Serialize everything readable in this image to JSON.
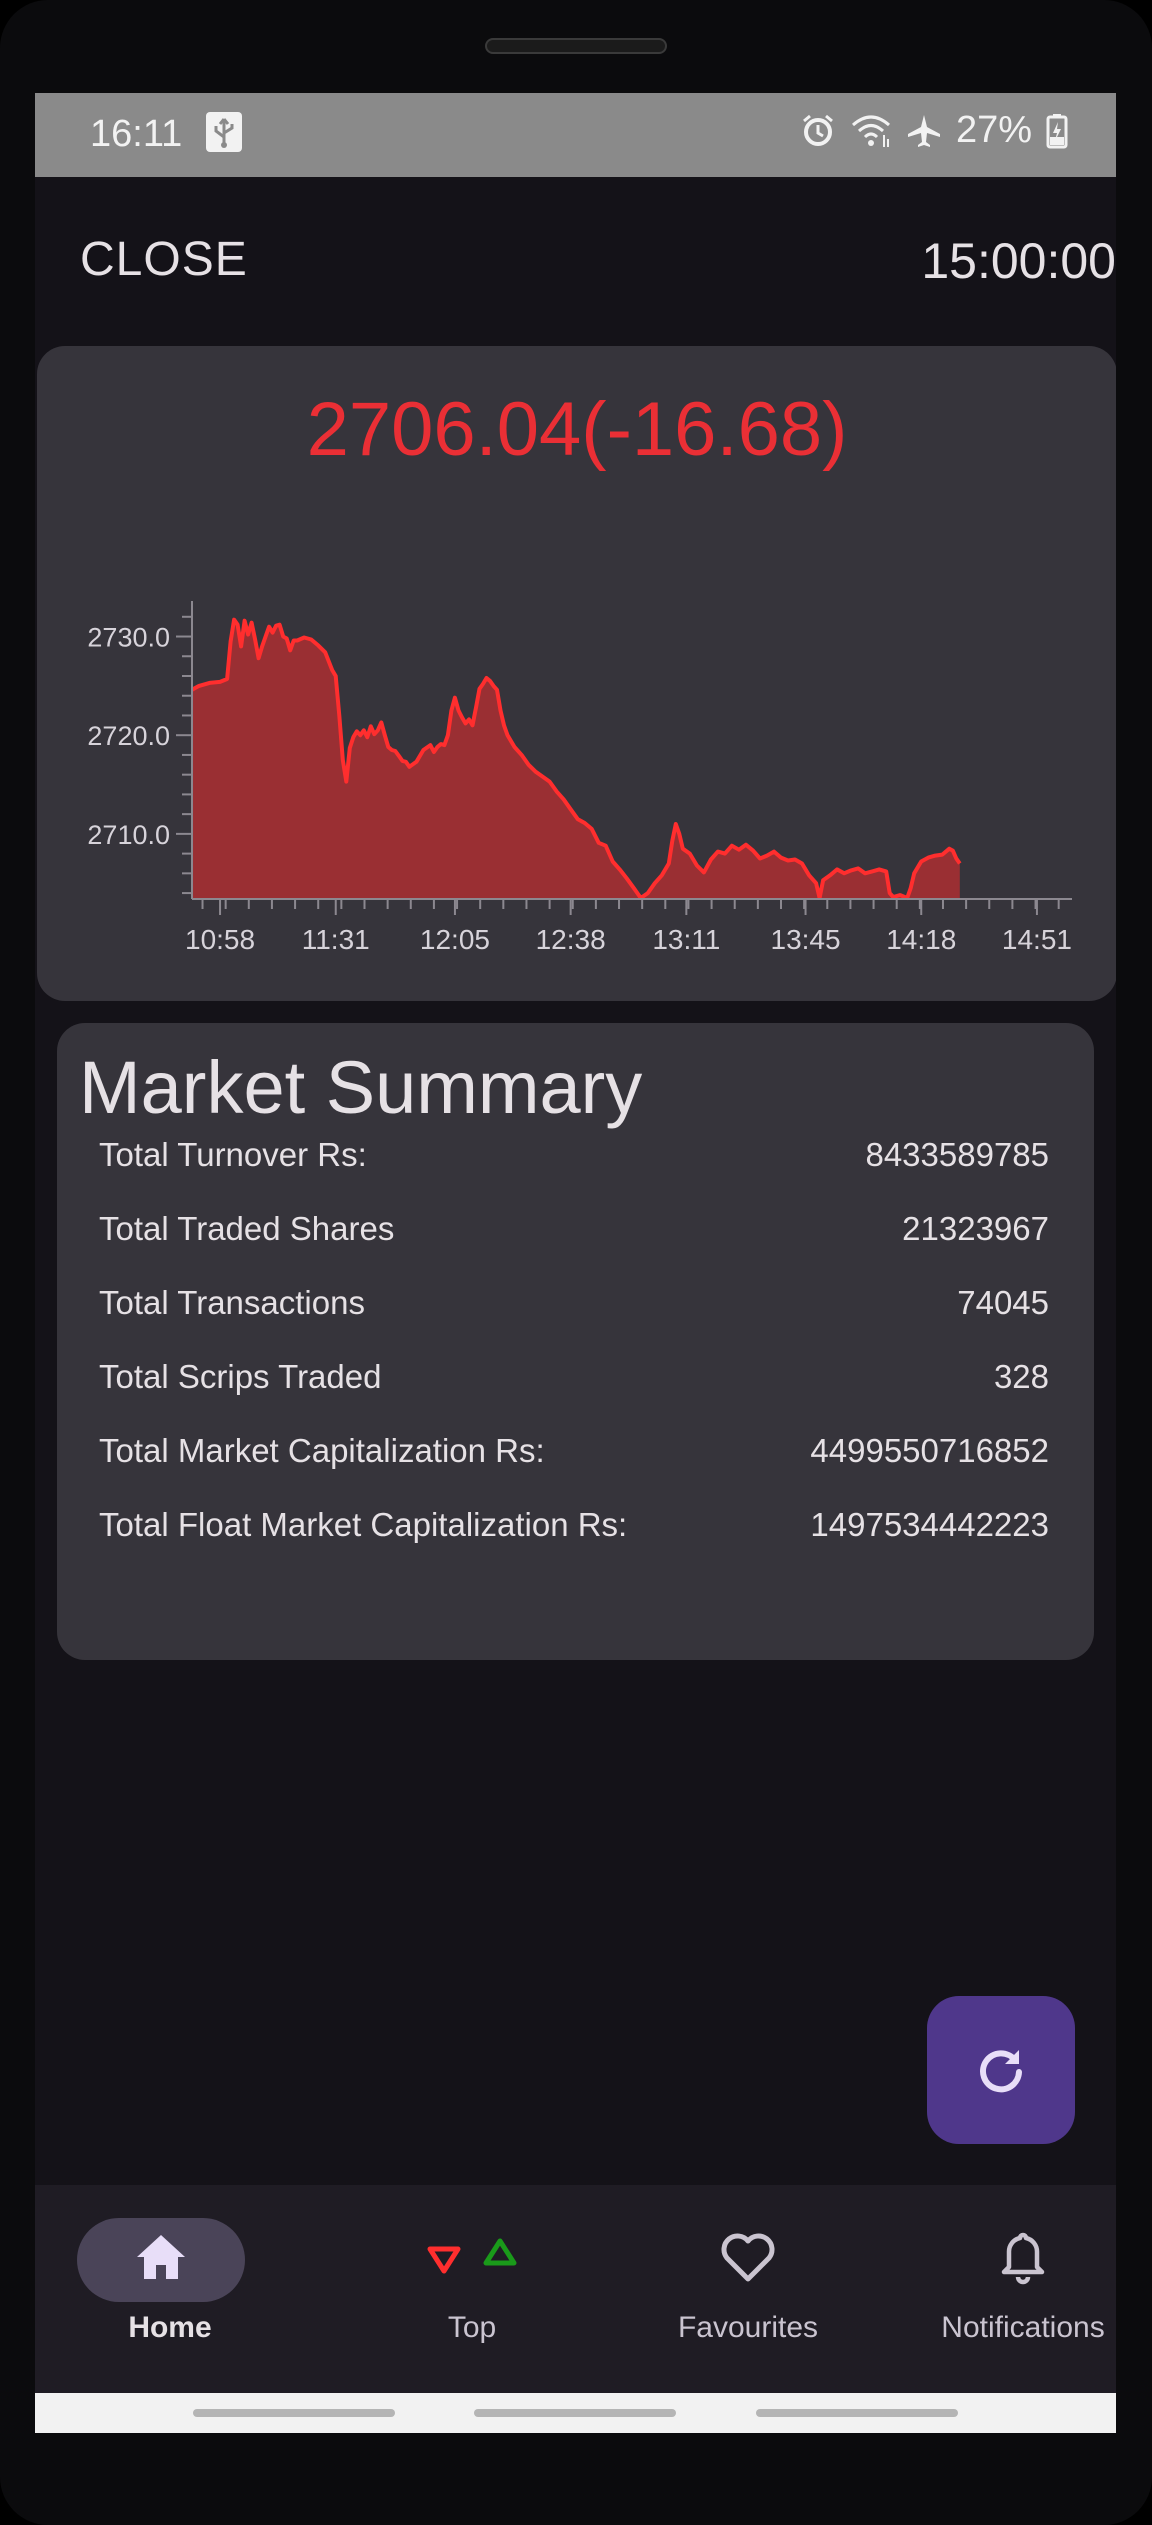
{
  "status_bar": {
    "time": "16:11",
    "battery": "27%",
    "icons": [
      "usb-icon",
      "alarm-icon",
      "wifi-icon",
      "airplane-icon",
      "battery-icon"
    ]
  },
  "header": {
    "market_status": "CLOSE",
    "clock": "15:00:00"
  },
  "index": {
    "value_text": "2706.04(-16.68)",
    "color": "#ea2f35"
  },
  "chart_data": {
    "type": "area",
    "series_color": "#ff2e2e",
    "fill_color": "#9a2f33",
    "y_ticks": [
      "2730.0",
      "2720.0",
      "2710.0"
    ],
    "ylim": [
      2703.4,
      2733.6
    ],
    "x_ticks": [
      "10:58",
      "11:31",
      "12:05",
      "12:38",
      "13:11",
      "13:45",
      "14:18",
      "14:51"
    ],
    "x_range_minutes": [
      650,
      901
    ],
    "points": [
      [
        650,
        2724.6
      ],
      [
        652,
        2725.0
      ],
      [
        655,
        2725.3
      ],
      [
        658,
        2725.4
      ],
      [
        660,
        2725.7
      ],
      [
        661,
        2729.5
      ],
      [
        662,
        2731.7
      ],
      [
        663,
        2731.2
      ],
      [
        664,
        2729.0
      ],
      [
        665,
        2731.6
      ],
      [
        666,
        2730.2
      ],
      [
        667,
        2731.4
      ],
      [
        668,
        2729.7
      ],
      [
        669,
        2727.8
      ],
      [
        670,
        2729.0
      ],
      [
        671,
        2730.0
      ],
      [
        672,
        2731.0
      ],
      [
        673,
        2730.4
      ],
      [
        674,
        2731.1
      ],
      [
        675,
        2731.2
      ],
      [
        676,
        2730.0
      ],
      [
        677,
        2729.8
      ],
      [
        678,
        2728.6
      ],
      [
        679,
        2729.6
      ],
      [
        680,
        2729.6
      ],
      [
        682,
        2729.9
      ],
      [
        684,
        2729.7
      ],
      [
        686,
        2729.1
      ],
      [
        688,
        2728.4
      ],
      [
        690,
        2726.6
      ],
      [
        691,
        2726.0
      ],
      [
        692,
        2722.0
      ],
      [
        693,
        2717.5
      ],
      [
        694,
        2715.3
      ],
      [
        695,
        2718.7
      ],
      [
        696,
        2719.8
      ],
      [
        697,
        2720.4
      ],
      [
        698,
        2720.0
      ],
      [
        699,
        2720.5
      ],
      [
        700,
        2719.8
      ],
      [
        701,
        2720.9
      ],
      [
        702,
        2720.1
      ],
      [
        703,
        2720.5
      ],
      [
        704,
        2721.3
      ],
      [
        705,
        2720.0
      ],
      [
        706,
        2718.8
      ],
      [
        707,
        2718.5
      ],
      [
        708,
        2718.4
      ],
      [
        709,
        2717.9
      ],
      [
        710,
        2717.4
      ],
      [
        711,
        2717.3
      ],
      [
        712,
        2716.8
      ],
      [
        714,
        2717.3
      ],
      [
        716,
        2718.5
      ],
      [
        718,
        2719.0
      ],
      [
        719,
        2718.3
      ],
      [
        720,
        2718.8
      ],
      [
        721,
        2719.1
      ],
      [
        722,
        2719.0
      ],
      [
        723,
        2720.0
      ],
      [
        724,
        2722.5
      ],
      [
        725,
        2723.8
      ],
      [
        726,
        2722.5
      ],
      [
        727,
        2721.8
      ],
      [
        728,
        2721.2
      ],
      [
        729,
        2721.6
      ],
      [
        730,
        2721.0
      ],
      [
        731,
        2722.8
      ],
      [
        732,
        2724.7
      ],
      [
        733,
        2725.2
      ],
      [
        734,
        2725.8
      ],
      [
        735,
        2725.5
      ],
      [
        736,
        2725.0
      ],
      [
        737,
        2724.6
      ],
      [
        738,
        2722.5
      ],
      [
        739,
        2721.0
      ],
      [
        740,
        2720.0
      ],
      [
        742,
        2718.8
      ],
      [
        744,
        2718.0
      ],
      [
        746,
        2717.0
      ],
      [
        748,
        2716.3
      ],
      [
        750,
        2715.8
      ],
      [
        752,
        2715.3
      ],
      [
        754,
        2714.3
      ],
      [
        756,
        2713.5
      ],
      [
        758,
        2712.5
      ],
      [
        760,
        2711.5
      ],
      [
        762,
        2711.1
      ],
      [
        764,
        2710.5
      ],
      [
        766,
        2709.1
      ],
      [
        768,
        2708.8
      ],
      [
        770,
        2707.2
      ],
      [
        772,
        2706.4
      ],
      [
        774,
        2705.5
      ],
      [
        776,
        2704.5
      ],
      [
        778,
        2703.5
      ],
      [
        780,
        2704.0
      ],
      [
        782,
        2705.0
      ],
      [
        784,
        2705.8
      ],
      [
        786,
        2707.0
      ],
      [
        787,
        2709.3
      ],
      [
        788,
        2711.0
      ],
      [
        789,
        2710.0
      ],
      [
        790,
        2708.5
      ],
      [
        792,
        2708.0
      ],
      [
        794,
        2706.8
      ],
      [
        796,
        2706.1
      ],
      [
        798,
        2707.4
      ],
      [
        800,
        2708.2
      ],
      [
        802,
        2708.0
      ],
      [
        804,
        2708.8
      ],
      [
        806,
        2708.4
      ],
      [
        808,
        2708.9
      ],
      [
        810,
        2708.3
      ],
      [
        812,
        2707.5
      ],
      [
        814,
        2707.8
      ],
      [
        816,
        2708.2
      ],
      [
        818,
        2707.6
      ],
      [
        820,
        2707.3
      ],
      [
        822,
        2707.4
      ],
      [
        824,
        2707.0
      ],
      [
        826,
        2705.8
      ],
      [
        828,
        2705.0
      ],
      [
        829,
        2703.5
      ],
      [
        830,
        2705.3
      ],
      [
        832,
        2705.8
      ],
      [
        834,
        2706.4
      ],
      [
        836,
        2706.0
      ],
      [
        838,
        2706.3
      ],
      [
        840,
        2706.5
      ],
      [
        842,
        2706.0
      ],
      [
        844,
        2706.2
      ],
      [
        846,
        2706.4
      ],
      [
        848,
        2706.2
      ],
      [
        849,
        2704.0
      ],
      [
        850,
        2703.6
      ],
      [
        852,
        2703.8
      ],
      [
        854,
        2703.5
      ],
      [
        855,
        2704.5
      ],
      [
        856,
        2706.0
      ],
      [
        858,
        2707.2
      ],
      [
        860,
        2707.6
      ],
      [
        862,
        2707.8
      ],
      [
        864,
        2707.9
      ],
      [
        866,
        2708.5
      ],
      [
        867,
        2708.3
      ],
      [
        868,
        2707.5
      ],
      [
        869,
        2707.0
      ]
    ]
  },
  "market_summary": {
    "title": "Market Summary",
    "rows": [
      {
        "label": "Total Turnover Rs:",
        "value": "8433589785"
      },
      {
        "label": "Total Traded Shares",
        "value": "21323967"
      },
      {
        "label": "Total Transactions",
        "value": "74045"
      },
      {
        "label": "Total Scrips Traded",
        "value": "328"
      },
      {
        "label": "Total Market Capitalization Rs:",
        "value": "4499550716852"
      },
      {
        "label": "Total Float Market Capitalization Rs:",
        "value": "1497534442223"
      }
    ]
  },
  "fab": {
    "icon": "refresh-icon"
  },
  "bottom_nav": {
    "items": [
      {
        "label": "Home",
        "icon": "home-icon",
        "active": true
      },
      {
        "label": "Top",
        "icon": "top-movers-icon",
        "active": false
      },
      {
        "label": "Favourites",
        "icon": "heart-icon",
        "active": false
      },
      {
        "label": "Notifications",
        "icon": "bell-icon",
        "active": false
      }
    ]
  }
}
